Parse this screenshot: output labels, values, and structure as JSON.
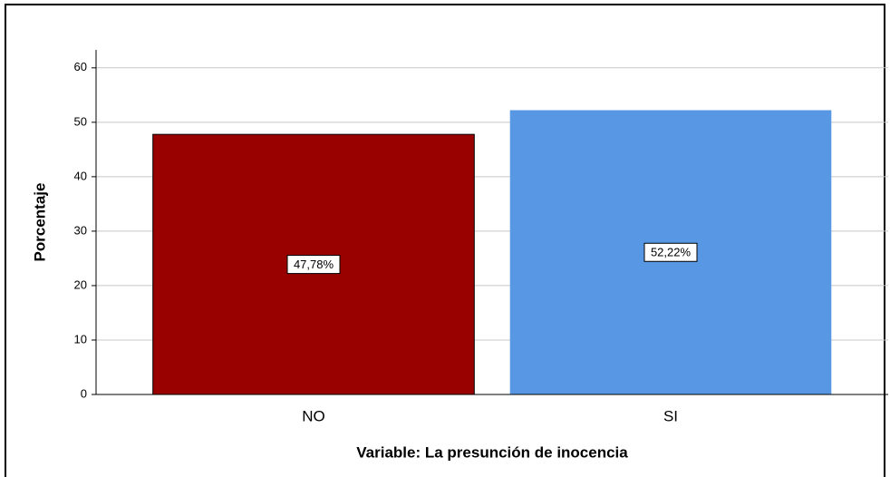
{
  "chart_data": {
    "type": "bar",
    "x_label": "Variable: La presunción de inocencia",
    "y_label": "Porcentaje",
    "categories": [
      "NO",
      "SI"
    ],
    "values": [
      47.78,
      52.22
    ],
    "value_labels": [
      "47,78%",
      "52,22%"
    ],
    "colors": [
      "#990000",
      "#5897e3"
    ],
    "ylim": [
      0,
      63.3
    ],
    "yticks": [
      0,
      10,
      20,
      30,
      40,
      50,
      60
    ],
    "grid": true
  }
}
